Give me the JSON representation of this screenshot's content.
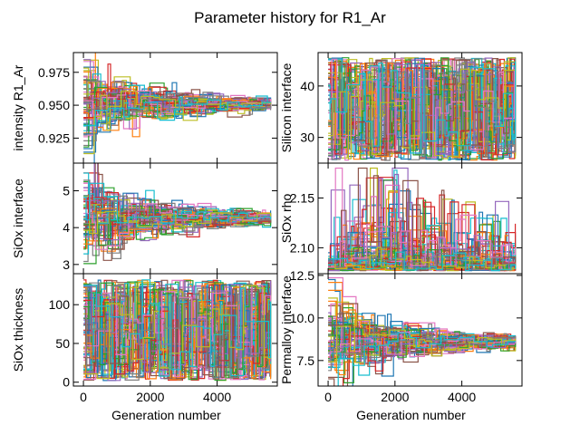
{
  "title": "Parameter history for R1_Ar",
  "palette": [
    "#1f77b4",
    "#ff7f0e",
    "#2ca02c",
    "#d62728",
    "#9467bd",
    "#8c564b",
    "#e377c2",
    "#7f7f7f",
    "#bcbd22",
    "#17becf"
  ],
  "chart_data": [
    {
      "type": "line",
      "id": "intensity",
      "ylabel": "intensity R1_Ar",
      "xlabel": "",
      "xlim": [
        -300,
        5800
      ],
      "ylim": [
        0.906,
        0.99
      ],
      "xticks": [
        0,
        2000,
        4000
      ],
      "xtick_labels": [],
      "yticks": [
        0.925,
        0.95,
        0.975
      ],
      "ytick_labels": [
        "0.925",
        "0.950",
        "0.975"
      ],
      "behavior": "converge",
      "center": 0.951,
      "spread_start": 0.02,
      "spread_end": 0.004,
      "n_series": 60,
      "x_max": 5600
    },
    {
      "type": "line",
      "id": "silicon",
      "ylabel": "Silicon interface",
      "xlabel": "",
      "xlim": [
        -300,
        5800
      ],
      "ylim": [
        25.0,
        46.5
      ],
      "xticks": [
        0,
        2000,
        4000
      ],
      "xtick_labels": [],
      "yticks": [
        30,
        40
      ],
      "ytick_labels": [
        "30",
        "40"
      ],
      "behavior": "uniform",
      "range": [
        25.5,
        45.5
      ],
      "n_series": 60,
      "x_max": 5600
    },
    {
      "type": "line",
      "id": "siox_interface",
      "ylabel": "SiOx interface",
      "xlabel": "",
      "xlim": [
        -300,
        5800
      ],
      "ylim": [
        2.75,
        5.75
      ],
      "xticks": [
        0,
        2000,
        4000
      ],
      "xtick_labels": [],
      "yticks": [
        3,
        4,
        5
      ],
      "ytick_labels": [
        "3",
        "4",
        "5"
      ],
      "behavior": "converge",
      "center": 4.25,
      "spread_start": 0.85,
      "spread_end": 0.15,
      "n_series": 60,
      "x_max": 5600
    },
    {
      "type": "line",
      "id": "siox_rho",
      "ylabel": "SiOx rho",
      "xlabel": "",
      "xlim": [
        -300,
        5800
      ],
      "ylim": [
        2.074,
        2.185
      ],
      "xticks": [
        0,
        2000,
        4000
      ],
      "xtick_labels": [],
      "yticks": [
        2.1,
        2.15
      ],
      "ytick_labels": [
        "2.10",
        "2.15"
      ],
      "behavior": "skew",
      "base": 2.077,
      "n_series": 60,
      "x_max": 5600
    },
    {
      "type": "line",
      "id": "siox_thickness",
      "ylabel": "SiOx thickness",
      "xlabel": "Generation number",
      "xlim": [
        -300,
        5800
      ],
      "ylim": [
        -5,
        140
      ],
      "xticks": [
        0,
        2000,
        4000
      ],
      "xtick_labels": [
        "0",
        "2000",
        "4000"
      ],
      "yticks": [
        0,
        50,
        100
      ],
      "ytick_labels": [
        "0",
        "50",
        "100"
      ],
      "behavior": "uniform",
      "range": [
        2,
        132
      ],
      "n_series": 60,
      "x_max": 5600
    },
    {
      "type": "line",
      "id": "permalloy",
      "ylabel": "Permalloy interface",
      "xlabel": "Generation number",
      "xlim": [
        -300,
        5800
      ],
      "ylim": [
        6.0,
        12.6
      ],
      "xticks": [
        0,
        2000,
        4000
      ],
      "xtick_labels": [
        "0",
        "2000",
        "4000"
      ],
      "yticks": [
        7.5,
        10.0,
        12.5
      ],
      "ytick_labels": [
        "7.5",
        "10.0",
        "12.5"
      ],
      "behavior": "converge",
      "center": 8.6,
      "spread_start": 1.9,
      "spread_end": 0.4,
      "n_series": 60,
      "x_max": 5600
    }
  ]
}
